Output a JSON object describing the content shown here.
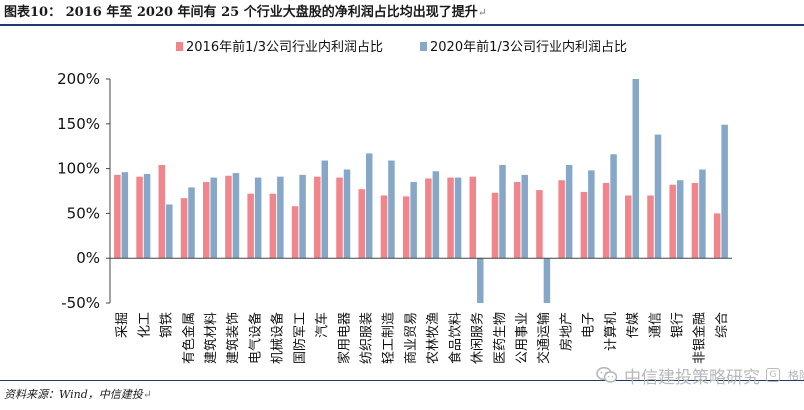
{
  "figure": {
    "title": "图表10： 2016 年至 2020 年间有 25 个行业大盘股的净利润占比均出现了提升",
    "title_mark": "↵",
    "source": "资料来源：Wind，中信建投",
    "source_mark": "↵"
  },
  "watermark": {
    "brand": "中信建投策略研究",
    "badge_letter": "G",
    "site": "格隆汇",
    "icon": "wechat-icon",
    "color": "#b8b8b8"
  },
  "colors": {
    "series_2016": "#f0868b",
    "series_2020": "#86a7c7",
    "rule": "#1f3a6e"
  },
  "chart_data": {
    "type": "bar",
    "title": "",
    "xlabel": "",
    "ylabel": "",
    "ylim": [
      -50,
      200
    ],
    "yticks": [
      -50,
      0,
      50,
      100,
      150,
      200
    ],
    "ytick_labels": [
      "-50%",
      "0%",
      "50%",
      "100%",
      "150%",
      "200%"
    ],
    "grid": false,
    "legend_position": "top",
    "categories": [
      "采掘",
      "化工",
      "钢铁",
      "有色金属",
      "建筑材料",
      "建筑装饰",
      "电气设备",
      "机械设备",
      "国防军工",
      "汽车",
      "家用电器",
      "纺织服装",
      "轻工制造",
      "商业贸易",
      "农林牧渔",
      "食品饮料",
      "休闲服务",
      "医药生物",
      "公用事业",
      "交通运输",
      "房地产",
      "电子",
      "计算机",
      "传媒",
      "通信",
      "银行",
      "非银金融",
      "综合"
    ],
    "series": [
      {
        "name": "2016年前1/3公司行业内利润占比",
        "values": [
          93,
          91,
          104,
          67,
          85,
          92,
          72,
          72,
          58,
          91,
          90,
          77,
          70,
          69,
          89,
          90,
          91,
          73,
          85,
          76,
          87,
          74,
          84,
          70,
          70,
          82,
          84,
          50
        ]
      },
      {
        "name": "2020年前1/3公司行业内利润占比",
        "values": [
          96,
          94,
          60,
          79,
          90,
          95,
          90,
          91,
          93,
          109,
          99,
          117,
          109,
          85,
          97,
          90,
          -50,
          104,
          93,
          -50,
          104,
          98,
          116,
          200,
          138,
          87,
          99,
          149
        ]
      }
    ]
  }
}
